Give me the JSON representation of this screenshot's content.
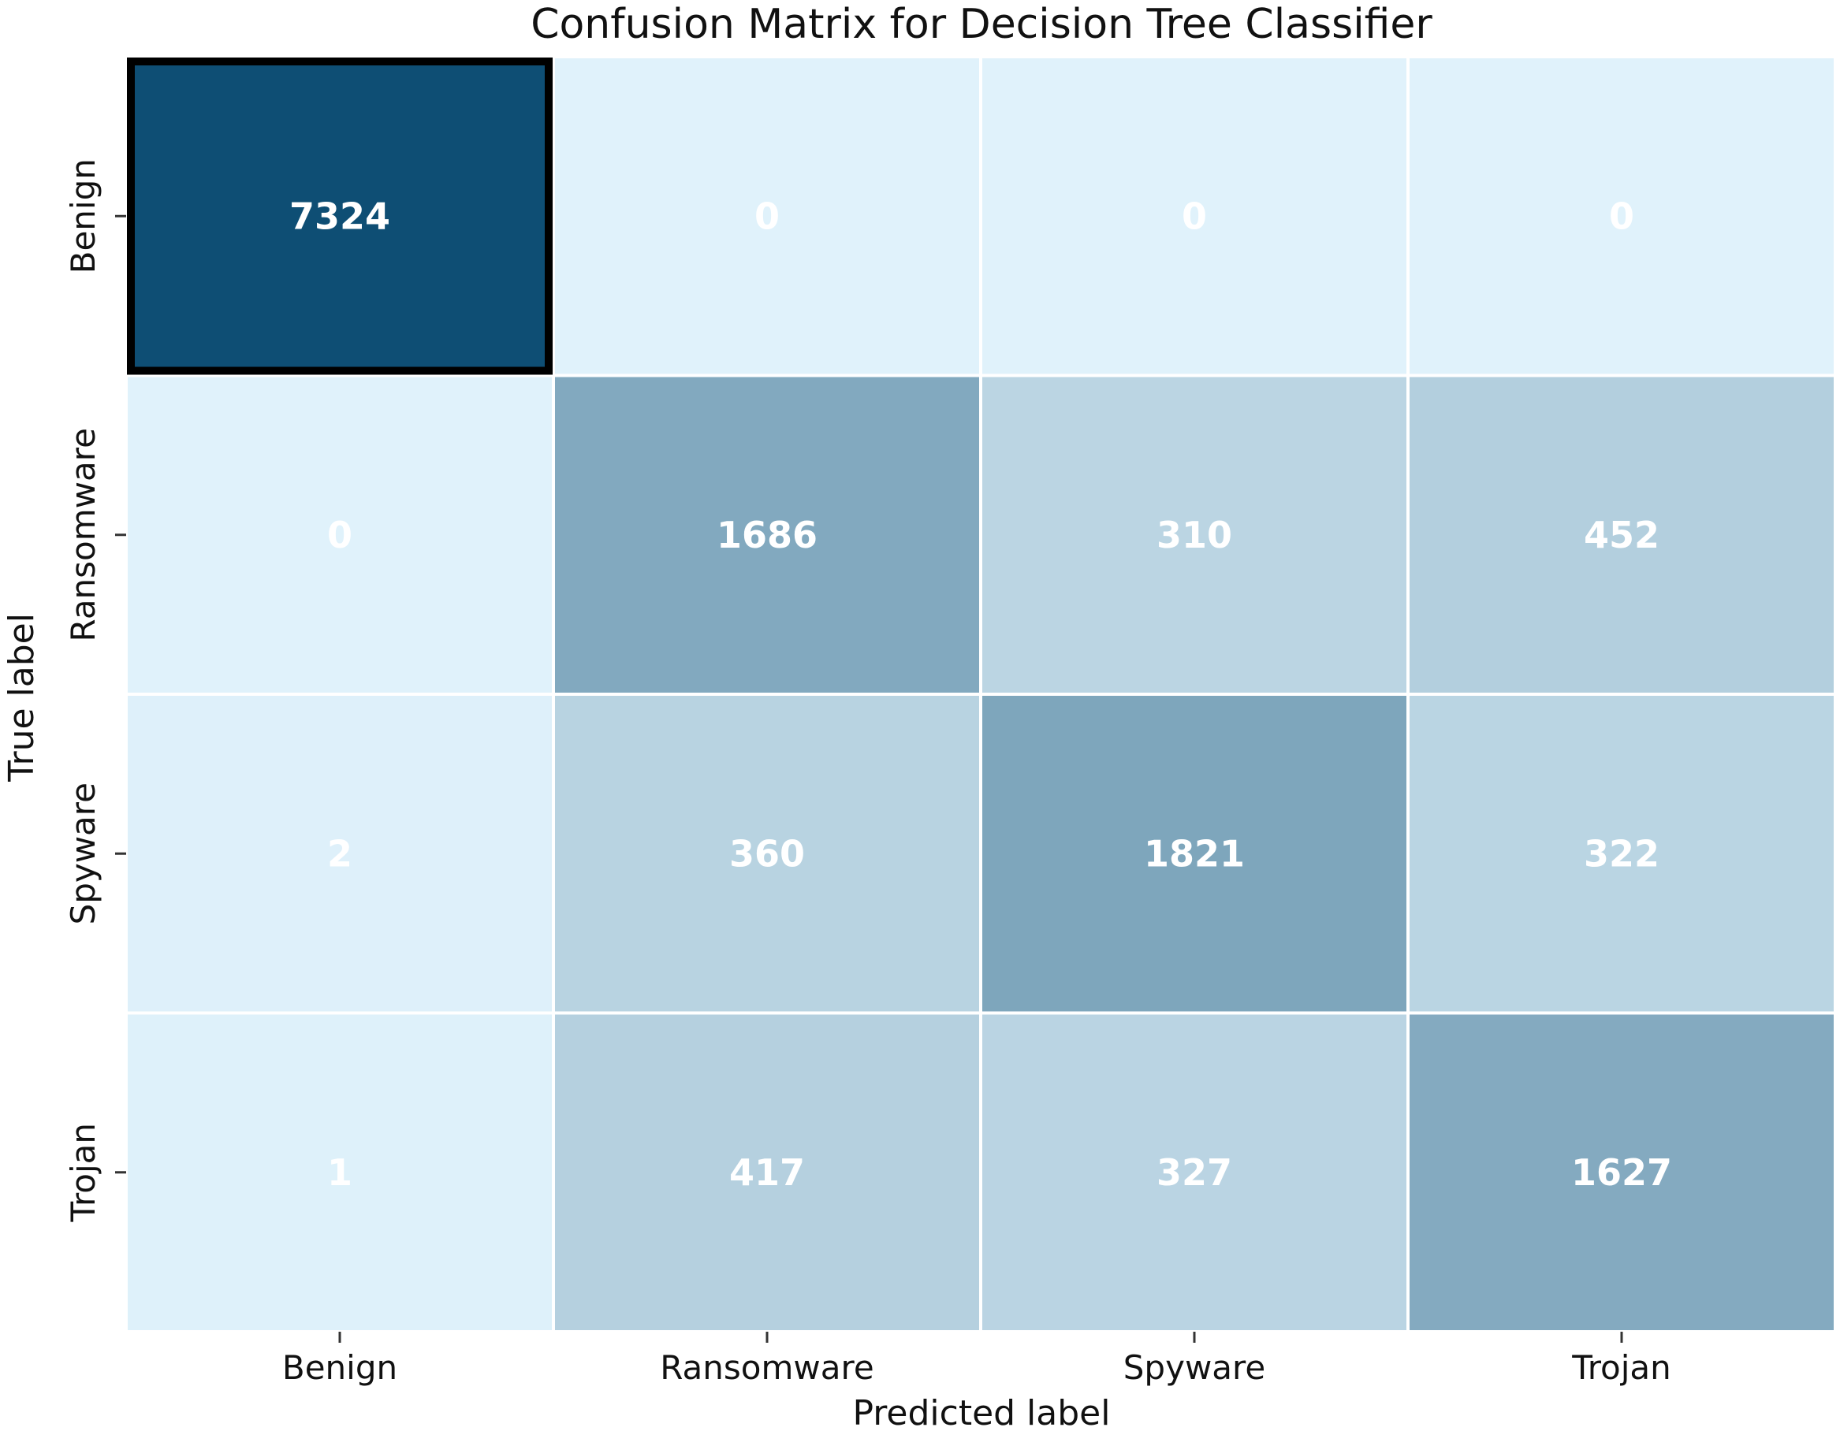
{
  "chart_data": {
    "type": "heatmap",
    "title": "Confusion Matrix for Decision Tree Classifier",
    "xlabel": "Predicted label",
    "ylabel": "True label",
    "x_categories": [
      "Benign",
      "Ransomware",
      "Spyware",
      "Trojan"
    ],
    "y_categories": [
      "Benign",
      "Ransomware",
      "Spyware",
      "Trojan"
    ],
    "values": [
      [
        7324,
        0,
        0,
        0
      ],
      [
        0,
        1686,
        310,
        452
      ],
      [
        2,
        360,
        1821,
        322
      ],
      [
        1,
        417,
        327,
        1627
      ]
    ],
    "colormap": [
      "#e0f2fb",
      "#0e4e74"
    ],
    "highlighted_cell": [
      0,
      0
    ],
    "colorbar": false
  }
}
